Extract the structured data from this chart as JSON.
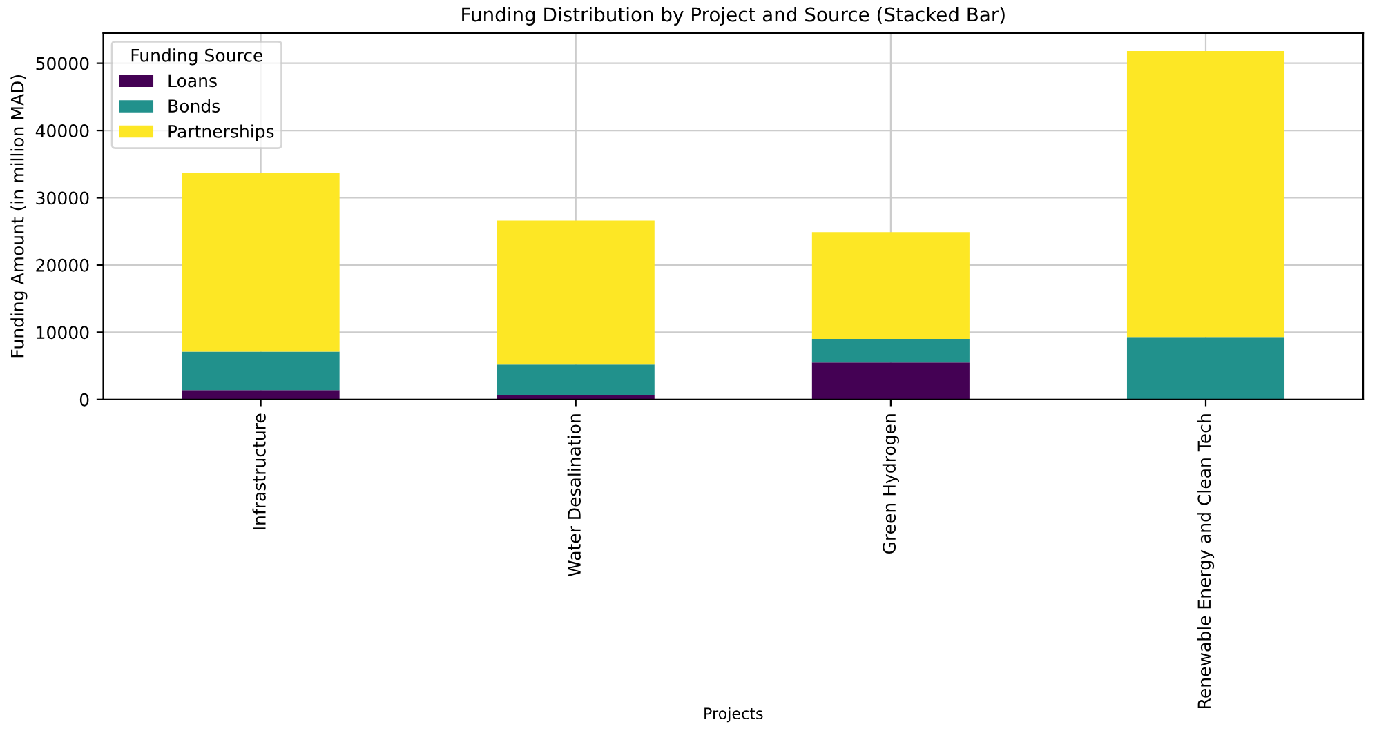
{
  "chart_data": {
    "type": "bar",
    "stacked": true,
    "title": "Funding Distribution by Project and Source (Stacked Bar)",
    "xlabel": "Projects",
    "ylabel": "Funding Amount (in million MAD)",
    "legend_title": "Funding Source",
    "legend": "top left",
    "grid": true,
    "categories": [
      "Infrastructure",
      "Water Desalination",
      "Green Hydrogen",
      "Renewable Energy and Clean Tech"
    ],
    "series": [
      {
        "name": "Loans",
        "color": "#440154",
        "values": [
          1400,
          700,
          5500,
          0
        ]
      },
      {
        "name": "Bonds",
        "color": "#21918c",
        "values": [
          5700,
          4500,
          3500,
          9300
        ]
      },
      {
        "name": "Partnerships",
        "color": "#fde725",
        "values": [
          26600,
          21400,
          15900,
          42500
        ]
      }
    ],
    "ylim": [
      0,
      54500
    ],
    "yticks": [
      0,
      10000,
      20000,
      30000,
      40000,
      50000
    ]
  }
}
